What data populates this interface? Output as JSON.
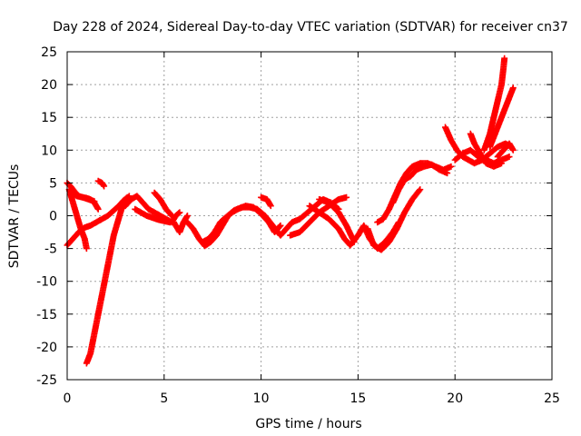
{
  "chart_data": {
    "type": "scatter",
    "title": "Day 228 of 2024, Sidereal Day-to-day VTEC variation (SDTVAR) for receiver cn37",
    "xlabel": "GPS time / hours",
    "ylabel": "SDTVAR / TECUs",
    "xlim": [
      0,
      25
    ],
    "ylim": [
      -25,
      25
    ],
    "xticks": [
      0,
      5,
      10,
      15,
      20,
      25
    ],
    "yticks": [
      -25,
      -20,
      -15,
      -10,
      -5,
      0,
      5,
      10,
      15,
      20,
      25
    ],
    "xtick_labels": [
      "0",
      "5",
      "10",
      "15",
      "20",
      "25"
    ],
    "ytick_labels": [
      "-25",
      "-20",
      "-15",
      "-10",
      "-5",
      "0",
      "5",
      "10",
      "15",
      "20",
      "25"
    ],
    "grid": true,
    "marker": "plus",
    "color": "#ff0000",
    "series": [
      {
        "name": "trace-1",
        "points": [
          [
            0.0,
            5.0
          ],
          [
            0.2,
            4.4
          ],
          [
            0.4,
            3.6
          ],
          [
            0.6,
            3.0
          ],
          [
            0.8,
            2.8
          ],
          [
            1.0,
            2.7
          ],
          [
            1.2,
            2.5
          ],
          [
            1.4,
            2.0
          ],
          [
            1.6,
            1.0
          ]
        ]
      },
      {
        "name": "trace-2",
        "points": [
          [
            0.0,
            -4.5
          ],
          [
            0.3,
            -3.5
          ],
          [
            0.6,
            -2.5
          ],
          [
            0.9,
            -1.8
          ],
          [
            1.2,
            -1.5
          ],
          [
            1.5,
            -1.0
          ],
          [
            1.8,
            -0.5
          ],
          [
            2.1,
            0.0
          ],
          [
            2.4,
            0.8
          ],
          [
            2.7,
            1.6
          ],
          [
            2.9,
            2.3
          ],
          [
            3.1,
            2.8
          ]
        ]
      },
      {
        "name": "trace-3",
        "points": [
          [
            0.1,
            4.0
          ],
          [
            0.3,
            2.0
          ],
          [
            0.5,
            0.0
          ],
          [
            0.7,
            -2.0
          ],
          [
            0.9,
            -3.5
          ],
          [
            1.0,
            -5.0
          ]
        ]
      },
      {
        "name": "trace-4",
        "points": [
          [
            0.2,
            3.5
          ],
          [
            0.5,
            3.0
          ],
          [
            0.8,
            2.8
          ],
          [
            1.1,
            2.5
          ],
          [
            1.4,
            2.2
          ]
        ]
      },
      {
        "name": "trace-5",
        "points": [
          [
            1.6,
            5.3
          ],
          [
            1.8,
            5.0
          ],
          [
            1.9,
            4.5
          ]
        ]
      },
      {
        "name": "trace-6",
        "points": [
          [
            1.0,
            -22.5
          ],
          [
            1.2,
            -21.0
          ],
          [
            1.4,
            -18.0
          ],
          [
            1.6,
            -15.0
          ],
          [
            1.8,
            -12.0
          ],
          [
            2.0,
            -9.0
          ],
          [
            2.2,
            -6.0
          ],
          [
            2.4,
            -3.0
          ],
          [
            2.6,
            -1.0
          ],
          [
            2.8,
            1.0
          ],
          [
            3.0,
            2.2
          ],
          [
            3.2,
            3.0
          ]
        ]
      },
      {
        "name": "trace-7",
        "points": [
          [
            3.0,
            1.5
          ],
          [
            3.3,
            2.5
          ],
          [
            3.6,
            3.0
          ],
          [
            3.9,
            2.0
          ],
          [
            4.2,
            1.0
          ],
          [
            4.5,
            0.5
          ],
          [
            4.8,
            0.0
          ],
          [
            5.1,
            -0.5
          ],
          [
            5.4,
            -1.0
          ],
          [
            5.6,
            0.0
          ],
          [
            5.8,
            0.5
          ]
        ]
      },
      {
        "name": "trace-8",
        "points": [
          [
            3.5,
            1.0
          ],
          [
            3.8,
            0.5
          ],
          [
            4.1,
            0.0
          ],
          [
            4.4,
            -0.3
          ],
          [
            4.7,
            -0.6
          ],
          [
            5.0,
            -0.8
          ],
          [
            5.3,
            -1.0
          ]
        ]
      },
      {
        "name": "trace-9",
        "points": [
          [
            4.5,
            3.5
          ],
          [
            4.8,
            2.5
          ],
          [
            5.1,
            1.0
          ],
          [
            5.4,
            0.0
          ]
        ]
      },
      {
        "name": "trace-10",
        "points": [
          [
            5.5,
            -1.0
          ],
          [
            5.8,
            -2.5
          ],
          [
            6.0,
            -1.0
          ],
          [
            6.2,
            0.0
          ]
        ]
      },
      {
        "name": "trace-11",
        "points": [
          [
            6.2,
            -1.0
          ],
          [
            6.5,
            -2.0
          ],
          [
            6.8,
            -3.5
          ],
          [
            7.1,
            -4.6
          ],
          [
            7.4,
            -4.0
          ],
          [
            7.7,
            -3.0
          ],
          [
            8.0,
            -1.5
          ],
          [
            8.3,
            0.0
          ],
          [
            8.6,
            0.8
          ],
          [
            9.0,
            1.3
          ],
          [
            9.4,
            1.3
          ],
          [
            9.8,
            1.0
          ],
          [
            10.2,
            0.0
          ],
          [
            10.6,
            -1.5
          ],
          [
            11.0,
            -3.0
          ],
          [
            11.3,
            -2.0
          ],
          [
            11.6,
            -1.0
          ],
          [
            12.0,
            -0.5
          ],
          [
            12.4,
            0.5
          ],
          [
            12.8,
            1.5
          ],
          [
            13.2,
            2.5
          ],
          [
            13.6,
            2.0
          ],
          [
            14.0,
            1.0
          ]
        ]
      },
      {
        "name": "trace-12",
        "points": [
          [
            7.0,
            -4.0
          ],
          [
            7.3,
            -3.5
          ],
          [
            7.6,
            -2.5
          ],
          [
            7.9,
            -1.0
          ],
          [
            8.2,
            -0.2
          ],
          [
            8.5,
            0.5
          ],
          [
            8.8,
            1.0
          ],
          [
            9.2,
            1.5
          ],
          [
            9.6,
            1.3
          ],
          [
            10.0,
            0.3
          ],
          [
            10.4,
            -1.0
          ],
          [
            10.7,
            -2.5
          ],
          [
            11.0,
            -1.5
          ]
        ]
      },
      {
        "name": "trace-13",
        "points": [
          [
            10.0,
            2.8
          ],
          [
            10.3,
            2.5
          ],
          [
            10.5,
            1.5
          ]
        ]
      },
      {
        "name": "trace-14",
        "points": [
          [
            11.5,
            -3.0
          ],
          [
            12.0,
            -2.5
          ],
          [
            12.5,
            -1.0
          ],
          [
            13.0,
            0.5
          ],
          [
            13.5,
            1.5
          ],
          [
            14.0,
            2.5
          ],
          [
            14.4,
            2.8
          ]
        ]
      },
      {
        "name": "trace-15",
        "points": [
          [
            12.5,
            1.5
          ],
          [
            13.0,
            0.5
          ],
          [
            13.5,
            -0.5
          ],
          [
            14.0,
            -2.0
          ],
          [
            14.3,
            -3.5
          ],
          [
            14.6,
            -4.5
          ],
          [
            15.0,
            -3.0
          ],
          [
            15.3,
            -1.5
          ],
          [
            15.6,
            -3.5
          ],
          [
            16.0,
            -5.0
          ],
          [
            16.4,
            -4.0
          ],
          [
            16.8,
            -2.5
          ],
          [
            17.1,
            -1.0
          ]
        ]
      },
      {
        "name": "trace-16",
        "points": [
          [
            13.0,
            2.5
          ],
          [
            13.5,
            2.0
          ],
          [
            14.0,
            0.5
          ],
          [
            14.4,
            -1.5
          ],
          [
            14.8,
            -4.0
          ]
        ]
      },
      {
        "name": "trace-17",
        "points": [
          [
            15.5,
            -2.0
          ],
          [
            15.8,
            -4.5
          ],
          [
            16.2,
            -5.2
          ],
          [
            16.6,
            -4.0
          ],
          [
            17.0,
            -2.0
          ],
          [
            17.4,
            0.5
          ],
          [
            17.8,
            2.5
          ],
          [
            18.2,
            4.0
          ]
        ]
      },
      {
        "name": "trace-18",
        "points": [
          [
            16.0,
            -1.0
          ],
          [
            16.3,
            -0.5
          ],
          [
            16.6,
            1.0
          ],
          [
            16.9,
            3.0
          ],
          [
            17.2,
            5.0
          ],
          [
            17.5,
            6.5
          ],
          [
            17.8,
            7.5
          ],
          [
            18.2,
            8.0
          ],
          [
            18.6,
            8.0
          ],
          [
            19.0,
            7.5
          ],
          [
            19.4,
            7.0
          ],
          [
            19.8,
            7.5
          ]
        ]
      },
      {
        "name": "trace-19",
        "points": [
          [
            16.8,
            2.0
          ],
          [
            17.1,
            4.0
          ],
          [
            17.4,
            5.5
          ],
          [
            17.7,
            6.0
          ],
          [
            18.0,
            7.0
          ],
          [
            18.4,
            7.5
          ],
          [
            18.8,
            7.8
          ],
          [
            19.2,
            7.0
          ],
          [
            19.6,
            6.5
          ]
        ]
      },
      {
        "name": "trace-20",
        "points": [
          [
            19.5,
            13.5
          ],
          [
            19.8,
            11.5
          ],
          [
            20.1,
            10.0
          ],
          [
            20.4,
            9.0
          ],
          [
            20.7,
            8.5
          ],
          [
            21.0,
            8.0
          ],
          [
            21.4,
            8.5
          ],
          [
            21.8,
            9.5
          ],
          [
            22.2,
            10.5
          ],
          [
            22.6,
            11.0
          ],
          [
            22.9,
            10.5
          ]
        ]
      },
      {
        "name": "trace-21",
        "points": [
          [
            20.0,
            8.5
          ],
          [
            20.4,
            9.5
          ],
          [
            20.8,
            10.0
          ],
          [
            21.2,
            9.0
          ],
          [
            21.6,
            8.5
          ],
          [
            22.0,
            8.0
          ],
          [
            22.4,
            8.5
          ],
          [
            22.8,
            9.0
          ]
        ]
      },
      {
        "name": "trace-22",
        "points": [
          [
            20.8,
            12.5
          ],
          [
            21.0,
            11.0
          ],
          [
            21.3,
            9.5
          ],
          [
            21.6,
            8.0
          ],
          [
            22.0,
            7.5
          ],
          [
            22.4,
            8.0
          ]
        ]
      },
      {
        "name": "trace-23",
        "points": [
          [
            21.5,
            10.0
          ],
          [
            21.8,
            12.5
          ],
          [
            22.0,
            15.0
          ],
          [
            22.2,
            17.5
          ],
          [
            22.4,
            20.0
          ],
          [
            22.5,
            22.5
          ],
          [
            22.55,
            24.0
          ]
        ]
      },
      {
        "name": "trace-24",
        "points": [
          [
            21.8,
            10.5
          ],
          [
            22.0,
            12.0
          ],
          [
            22.2,
            13.5
          ],
          [
            22.4,
            15.0
          ],
          [
            22.6,
            16.5
          ],
          [
            22.8,
            18.0
          ],
          [
            23.0,
            19.5
          ]
        ]
      },
      {
        "name": "trace-25",
        "points": [
          [
            22.2,
            9.0
          ],
          [
            22.5,
            10.0
          ],
          [
            22.8,
            11.0
          ],
          [
            23.0,
            10.0
          ]
        ]
      }
    ]
  }
}
